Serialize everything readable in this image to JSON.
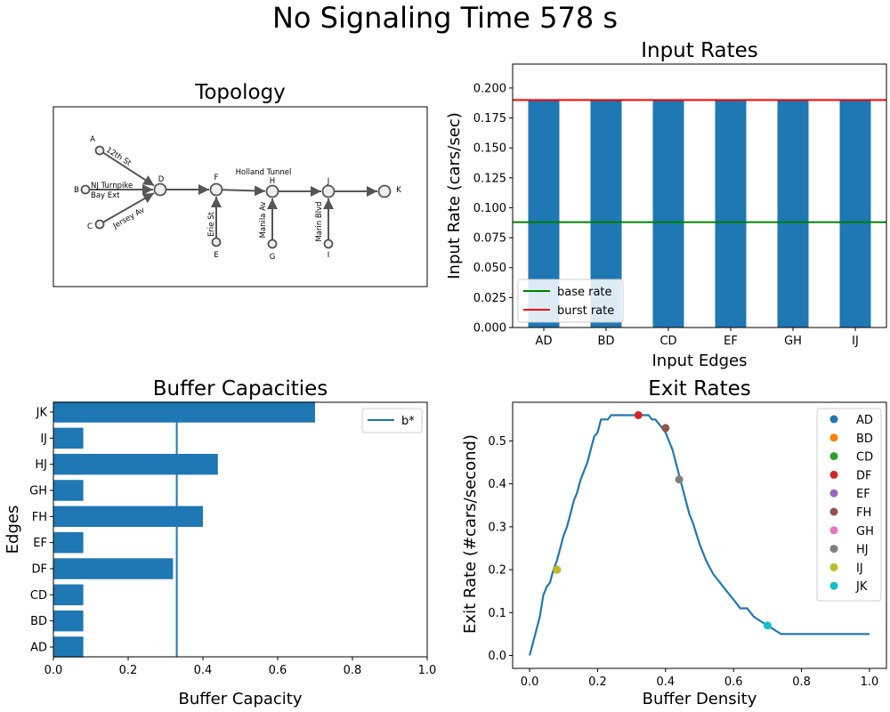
{
  "suptitle": "No Signaling Time 578 s",
  "chart_data": [
    {
      "type": "diagram",
      "title": "Topology",
      "nodes": [
        {
          "id": "A",
          "label": "A"
        },
        {
          "id": "B",
          "label": "B"
        },
        {
          "id": "C",
          "label": "C"
        },
        {
          "id": "D",
          "label": "D"
        },
        {
          "id": "E",
          "label": "E"
        },
        {
          "id": "F",
          "label": "F"
        },
        {
          "id": "G",
          "label": "G"
        },
        {
          "id": "H",
          "label": "H"
        },
        {
          "id": "I",
          "label": "I"
        },
        {
          "id": "J",
          "label": "J"
        },
        {
          "id": "K",
          "label": "K"
        }
      ],
      "edges": [
        {
          "from": "A",
          "to": "D",
          "label": "12th St"
        },
        {
          "from": "B",
          "to": "D",
          "label": "NJ Turnpike Bay Ext"
        },
        {
          "from": "C",
          "to": "D",
          "label": "Jersey Av"
        },
        {
          "from": "D",
          "to": "F",
          "label": ""
        },
        {
          "from": "E",
          "to": "F",
          "label": "Erie St"
        },
        {
          "from": "F",
          "to": "H",
          "label": "Holland Tunnel"
        },
        {
          "from": "G",
          "to": "H",
          "label": "Manila Av"
        },
        {
          "from": "H",
          "to": "J",
          "label": ""
        },
        {
          "from": "I",
          "to": "J",
          "label": "Marin Blvd"
        },
        {
          "from": "J",
          "to": "K",
          "label": ""
        }
      ]
    },
    {
      "type": "bar",
      "title": "Input Rates",
      "xlabel": "Input Edges",
      "ylabel": "Input Rate (cars/sec)",
      "categories": [
        "AD",
        "BD",
        "CD",
        "EF",
        "GH",
        "IJ"
      ],
      "values": [
        0.19,
        0.19,
        0.19,
        0.19,
        0.19,
        0.19
      ],
      "ylim": [
        0,
        0.22
      ],
      "yticks": [
        "0.000",
        "0.025",
        "0.050",
        "0.075",
        "0.100",
        "0.125",
        "0.150",
        "0.175",
        "0.200"
      ],
      "hlines": [
        {
          "name": "base rate",
          "value": 0.088,
          "color": "#008000"
        },
        {
          "name": "burst rate",
          "value": 0.19,
          "color": "#ff0000"
        }
      ],
      "bar_color": "#1f77b4",
      "legend": "lower-left"
    },
    {
      "type": "barh",
      "title": "Buffer Capacities",
      "xlabel": "Buffer Capacity",
      "ylabel": "Edges",
      "categories": [
        "AD",
        "BD",
        "CD",
        "DF",
        "EF",
        "FH",
        "GH",
        "HJ",
        "IJ",
        "JK"
      ],
      "values": [
        0.08,
        0.08,
        0.08,
        0.32,
        0.08,
        0.4,
        0.08,
        0.44,
        0.08,
        0.7
      ],
      "xlim": [
        0,
        1.0
      ],
      "xticks": [
        "0.0",
        "0.2",
        "0.4",
        "0.6",
        "0.8",
        "1.0"
      ],
      "vline": {
        "name": "b*",
        "value": 0.33,
        "color": "#1f77b4"
      },
      "bar_color": "#1f77b4",
      "legend": "top-right"
    },
    {
      "type": "line",
      "title": "Exit Rates",
      "xlabel": "Buffer Density",
      "ylabel": "Exit Rate (#cars/second)",
      "xlim": [
        -0.05,
        1.05
      ],
      "ylim": [
        -0.03,
        0.59
      ],
      "xticks": [
        "0.0",
        "0.2",
        "0.4",
        "0.6",
        "0.8",
        "1.0"
      ],
      "yticks": [
        "0.0",
        "0.1",
        "0.2",
        "0.3",
        "0.4",
        "0.5"
      ],
      "line_color": "#1f77b4",
      "x": [
        0.0,
        0.01,
        0.02,
        0.03,
        0.04,
        0.05,
        0.06,
        0.07,
        0.08,
        0.09,
        0.1,
        0.11,
        0.12,
        0.13,
        0.14,
        0.15,
        0.16,
        0.17,
        0.18,
        0.19,
        0.2,
        0.21,
        0.22,
        0.23,
        0.24,
        0.25,
        0.26,
        0.27,
        0.28,
        0.29,
        0.3,
        0.31,
        0.32,
        0.33,
        0.34,
        0.35,
        0.36,
        0.37,
        0.38,
        0.39,
        0.4,
        0.41,
        0.42,
        0.43,
        0.44,
        0.45,
        0.46,
        0.47,
        0.48,
        0.5,
        0.52,
        0.54,
        0.56,
        0.58,
        0.6,
        0.62,
        0.64,
        0.66,
        0.68,
        0.7,
        0.72,
        0.74,
        0.8,
        0.9,
        1.0
      ],
      "y": [
        0.0,
        0.03,
        0.06,
        0.09,
        0.14,
        0.16,
        0.17,
        0.2,
        0.22,
        0.25,
        0.28,
        0.3,
        0.33,
        0.36,
        0.38,
        0.41,
        0.43,
        0.45,
        0.48,
        0.51,
        0.52,
        0.55,
        0.55,
        0.55,
        0.56,
        0.56,
        0.56,
        0.56,
        0.56,
        0.56,
        0.56,
        0.56,
        0.56,
        0.56,
        0.56,
        0.56,
        0.55,
        0.55,
        0.54,
        0.53,
        0.52,
        0.5,
        0.48,
        0.45,
        0.42,
        0.39,
        0.36,
        0.33,
        0.31,
        0.26,
        0.22,
        0.19,
        0.17,
        0.15,
        0.13,
        0.11,
        0.11,
        0.09,
        0.08,
        0.07,
        0.06,
        0.05,
        0.05,
        0.05,
        0.05
      ],
      "points": [
        {
          "name": "AD",
          "x": 0.08,
          "y": 0.2,
          "color": "#1f77b4"
        },
        {
          "name": "BD",
          "x": 0.08,
          "y": 0.2,
          "color": "#ff7f0e"
        },
        {
          "name": "CD",
          "x": 0.08,
          "y": 0.2,
          "color": "#2ca02c"
        },
        {
          "name": "DF",
          "x": 0.32,
          "y": 0.56,
          "color": "#d62728"
        },
        {
          "name": "EF",
          "x": 0.08,
          "y": 0.2,
          "color": "#9467bd"
        },
        {
          "name": "FH",
          "x": 0.4,
          "y": 0.53,
          "color": "#8c564b"
        },
        {
          "name": "GH",
          "x": 0.08,
          "y": 0.2,
          "color": "#e377c2"
        },
        {
          "name": "HJ",
          "x": 0.44,
          "y": 0.41,
          "color": "#7f7f7f"
        },
        {
          "name": "IJ",
          "x": 0.08,
          "y": 0.2,
          "color": "#bcbd22"
        },
        {
          "name": "JK",
          "x": 0.7,
          "y": 0.07,
          "color": "#17becf"
        }
      ],
      "legend": "top-right"
    }
  ]
}
